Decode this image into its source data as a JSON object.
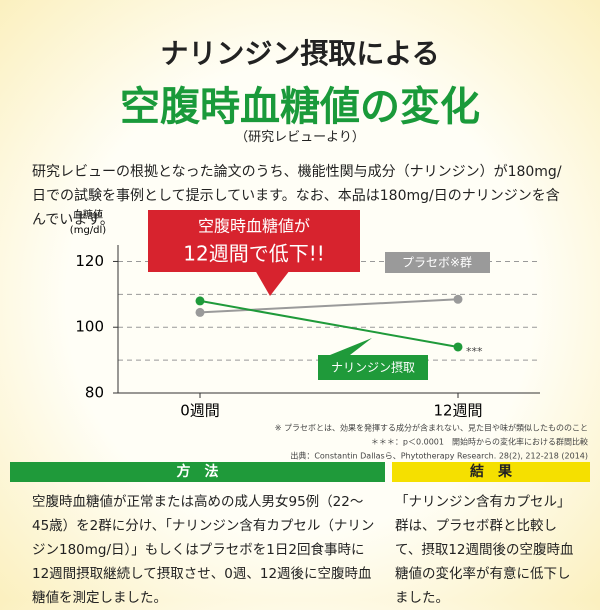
{
  "header": {
    "title_line1": "ナリンジン摂取による",
    "title_line2": "空腹時血糖値の変化",
    "source_note": "（研究レビューより）"
  },
  "intro": "研究レビューの根拠となった論文のうち、機能性関与成分（ナリンジン）が180mg/日での試験を事例として提示しています。なお、本品は180mg/日のナリンジンを含んでいます。",
  "chart_data": {
    "type": "line",
    "ylabel": "血糖値",
    "yunit": "(mg/dl)",
    "categories": [
      "0週間",
      "12週間"
    ],
    "series": [
      {
        "name": "プラセボ※群",
        "color": "#9a9a9a",
        "values": [
          104.5,
          108.5
        ]
      },
      {
        "name": "ナリンジン摂取",
        "color": "#1f9a3a",
        "values": [
          108,
          94
        ]
      }
    ],
    "ylim": [
      80,
      125
    ],
    "yticks": [
      80,
      100,
      120
    ],
    "grid_lines": [
      90,
      100,
      110,
      120
    ],
    "callout": [
      "空腹時血糖値が",
      "12週間で低下!!"
    ],
    "significance": "***",
    "footnotes": [
      "※ プラセボとは、効果を発揮する成分が含まれない、見た目や味が類似したもののこと",
      "＊＊＊：p＜0.0001　開始時からの変化率における群間比較",
      "出典：Constantin Dallasら、Phytotherapy Research. 28(2), 212-218 (2014)"
    ]
  },
  "method": {
    "heading": "方　法",
    "text": "空腹時血糖値が正常または高めの成人男女95例（22～45歳）を2群に分け、「ナリンジン含有カプセル（ナリンジン180mg/日）」もしくはプラセボを1日2回食事時に12週間摂取継続して摂取させ、0週、12週後に空腹時血糖値を測定しました。"
  },
  "result": {
    "heading": "結　果",
    "text": "「ナリンジン含有カプセル」群は、プラセボ群と比較して、摂取12週間後の空腹時血糖値の変化率が有意に低下しました。"
  }
}
